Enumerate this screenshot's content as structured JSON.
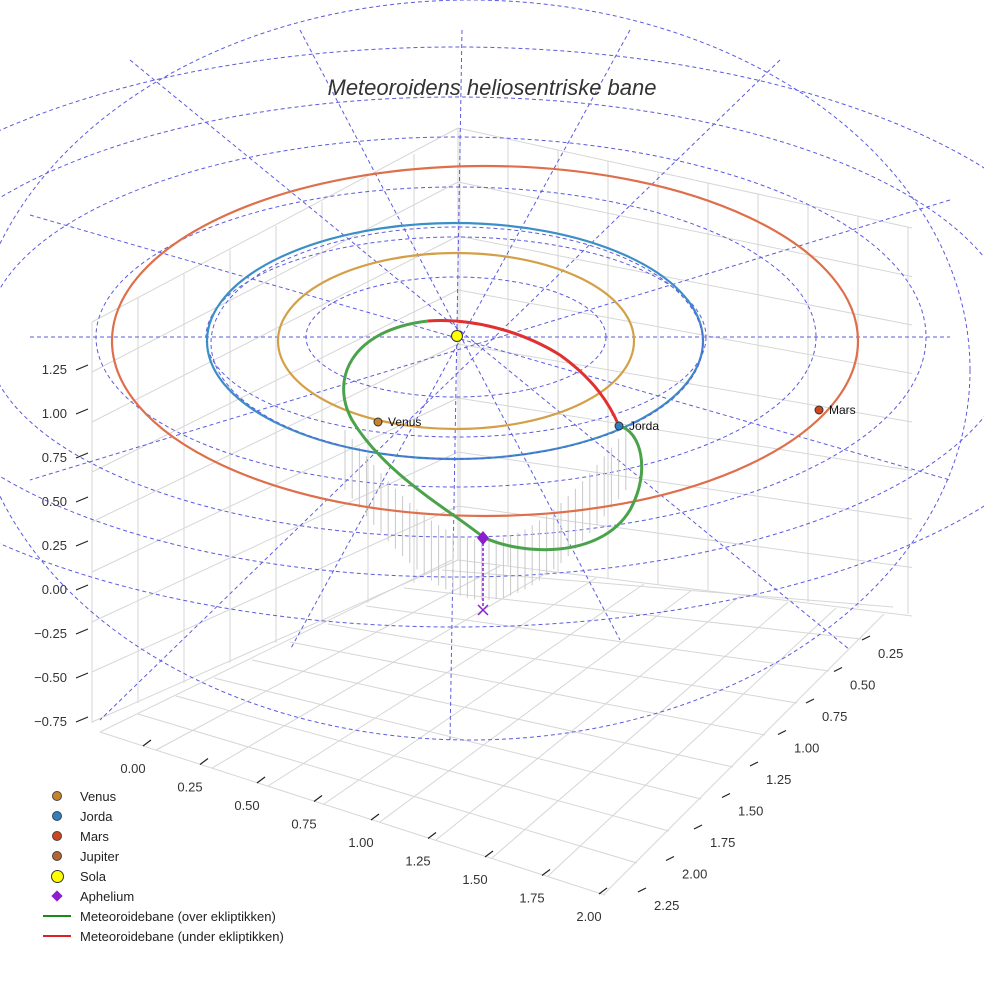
{
  "chart_data": {
    "type": "line",
    "title": "Meteoroidens heliosentriske bane",
    "z_ticks": [
      "1.25",
      "1.00",
      "0.75",
      "0.50",
      "0.25",
      "0.00",
      "−0.25",
      "−0.50",
      "−0.75"
    ],
    "x_ticks": [
      "0.00",
      "0.25",
      "0.50",
      "0.75",
      "1.00",
      "1.25",
      "1.50",
      "1.75",
      "2.00"
    ],
    "y_ticks": [
      "0.25",
      "0.50",
      "0.75",
      "1.00",
      "1.25",
      "1.50",
      "1.75",
      "2.00",
      "2.25"
    ],
    "orbits": [
      {
        "name": "Venus",
        "radius_au": 0.72,
        "color": "#d4a047"
      },
      {
        "name": "Jorda",
        "radius_au": 1.0,
        "color": "#3a8fc7"
      },
      {
        "name": "Mars",
        "radius_au": 1.52,
        "color": "#de6f4a"
      }
    ],
    "planets": [
      {
        "name": "Venus",
        "label": "Venus",
        "color": "#c7832b"
      },
      {
        "name": "Jorda",
        "label": "Jorda",
        "color": "#2f7fc1"
      },
      {
        "name": "Mars",
        "label": "Mars",
        "color": "#d0461c"
      }
    ],
    "meteoroid": {
      "color_over": "#4aa34a",
      "color_under": "#e03030",
      "aphelion_color": "#8a1fd0"
    },
    "legend": [
      {
        "label": "Venus",
        "symbol": "dot",
        "color": "#c7832b"
      },
      {
        "label": "Jorda",
        "symbol": "dot",
        "color": "#2f7fc1"
      },
      {
        "label": "Mars",
        "symbol": "dot",
        "color": "#d0461c"
      },
      {
        "label": "Jupiter",
        "symbol": "dot",
        "color": "#b5652f"
      },
      {
        "label": "Sola",
        "symbol": "bigdot",
        "color": "#ffff00"
      },
      {
        "label": "Aphelium",
        "symbol": "diamond",
        "color": "#8a1fd0"
      },
      {
        "label": "Meteoroidebane (over ekliptikken)",
        "symbol": "line",
        "color": "#1a8a1a"
      },
      {
        "label": "Meteoroidebane (under ekliptikken)",
        "symbol": "line",
        "color": "#e02020"
      }
    ]
  }
}
